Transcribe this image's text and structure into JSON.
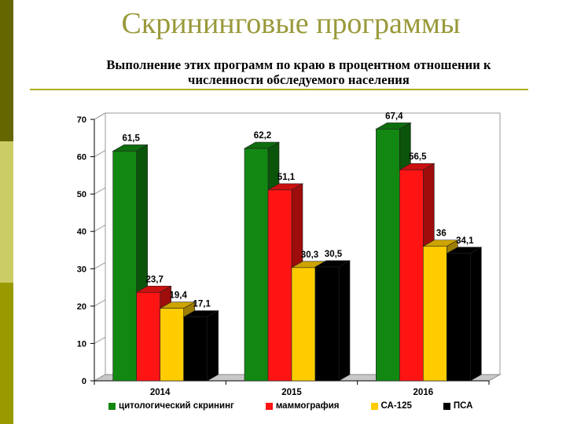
{
  "slide": {
    "title": "Скрининговые программы",
    "subtitle_line1": "Выполнение этих программ по краю в процентном отношении к",
    "subtitle_line2": "численности обследуемого населения"
  },
  "colors": {
    "stripe_dark": "#666600",
    "stripe_light": "#cccc66",
    "stripe_mid": "#999900",
    "title": "#99993a",
    "rule": "#aeb020"
  },
  "chart_data": {
    "type": "bar",
    "categories": [
      "2014",
      "2015",
      "2016"
    ],
    "ylim": [
      0,
      70
    ],
    "yticks": [
      "0",
      "10",
      "20",
      "30",
      "40",
      "50",
      "60",
      "70"
    ],
    "series": [
      {
        "name": "цитологический скрининг",
        "color": "#128812",
        "values": [
          61.5,
          62.2,
          67.4
        ],
        "labels": [
          "61,5",
          "62,2",
          "67,4"
        ]
      },
      {
        "name": "маммография",
        "color": "#ff1414",
        "values": [
          23.7,
          51.1,
          56.5
        ],
        "labels": [
          "23,7",
          "51,1",
          "56,5"
        ]
      },
      {
        "name": "СА-125",
        "color": "#ffcc00",
        "values": [
          19.4,
          30.3,
          36
        ],
        "labels": [
          "19,4",
          "30,3",
          "36"
        ]
      },
      {
        "name": "ПСА",
        "color": "#000000",
        "values": [
          17.1,
          30.5,
          34.1
        ],
        "labels": [
          "17,1",
          "30,5",
          "34,1"
        ]
      }
    ],
    "legend_position": "bottom",
    "grid": false
  }
}
